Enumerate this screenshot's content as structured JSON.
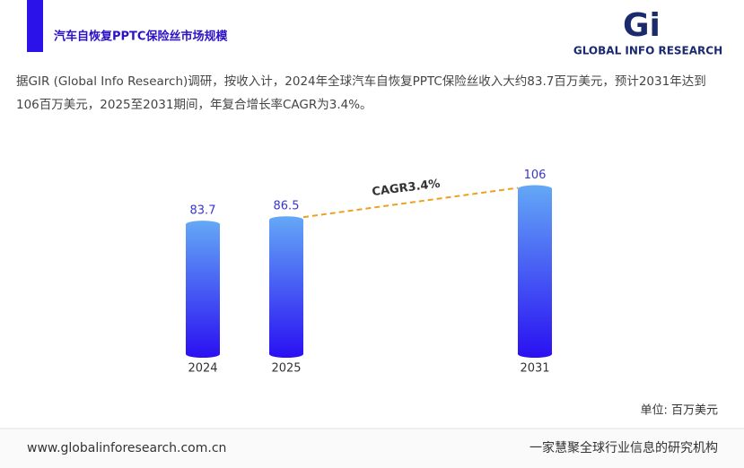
{
  "header": {
    "title": "汽车自恢复PPTC保险丝市场规模",
    "logo_mark": "Gi",
    "logo_text": "GLOBAL INFO RESEARCH"
  },
  "description": "据GIR (Global Info Research)调研，按收入计，2024年全球汽车自恢复PPTC保险丝收入大约83.7百万美元，预计2031年达到106百万美元，2025至2031期间，年复合增长率CAGR为3.4%。",
  "chart_data": {
    "type": "bar",
    "categories": [
      "2024",
      "2025",
      "2031"
    ],
    "values": [
      83.7,
      86.5,
      106
    ],
    "annotation": "CAGR3.4%",
    "unit_label": "单位: 百万美元"
  },
  "footer": {
    "url": "www.globalinforesearch.com.cn",
    "slogan": "一家慧聚全球行业信息的研究机构"
  }
}
